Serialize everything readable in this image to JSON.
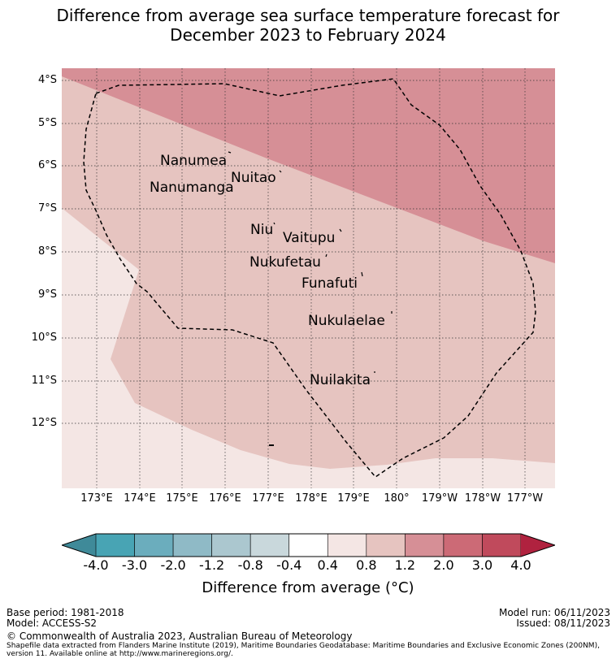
{
  "title": {
    "line1": "Difference from average sea surface temperature forecast for",
    "line2": "December 2023 to February 2024"
  },
  "axes": {
    "lat_labels": [
      "4°S",
      "5°S",
      "6°S",
      "7°S",
      "8°S",
      "9°S",
      "10°S",
      "11°S",
      "12°S"
    ],
    "lon_labels": [
      "173°E",
      "174°E",
      "175°E",
      "176°E",
      "177°E",
      "178°E",
      "179°E",
      "180°",
      "179°W",
      "178°W",
      "177°W"
    ]
  },
  "places": [
    {
      "name": "Nanumea"
    },
    {
      "name": "Nuitao"
    },
    {
      "name": "Nanumanga"
    },
    {
      "name": "Niu"
    },
    {
      "name": "Vaitupu"
    },
    {
      "name": "Nukufetau"
    },
    {
      "name": "Funafuti"
    },
    {
      "name": "Nukulaelae"
    },
    {
      "name": "Nuilakita"
    }
  ],
  "colorbar": {
    "ticks": [
      "-4.0",
      "-3.0",
      "-2.0",
      "-1.2",
      "-0.8",
      "-0.4",
      "0.4",
      "0.8",
      "1.2",
      "2.0",
      "3.0",
      "4.0"
    ],
    "colors": {
      "under": "#3f8a99",
      "bins": [
        "#48a4b4",
        "#6badbd",
        "#8fbac6",
        "#abc7cf",
        "#c9d8dc",
        "#ffffff",
        "#f4e6e4",
        "#e6c4c0",
        "#d68f96",
        "#cc6a76",
        "#c04a5c"
      ],
      "over": "#b0223f"
    },
    "title": "Difference from average (°C)"
  },
  "map_colors": {
    "light": "#f4e6e4",
    "medium": "#e6c4c0",
    "dark": "#d68f96"
  },
  "footer": {
    "base_period": "Base period: 1981-2018",
    "model": "Model: ACCESS-S2",
    "model_run": "Model run: 06/11/2023",
    "issued": "Issued: 08/11/2023",
    "copyright": "© Commonwealth of Australia 2023, Australian Bureau of Meteorology",
    "source_note": "Shapefile data extracted from Flanders Marine Institute (2019), Maritime Boundaries Geodatabase: Maritime Boundaries and Exclusive Economic Zones (200NM), version 11. Available online at http://www.marineregions.org/."
  }
}
